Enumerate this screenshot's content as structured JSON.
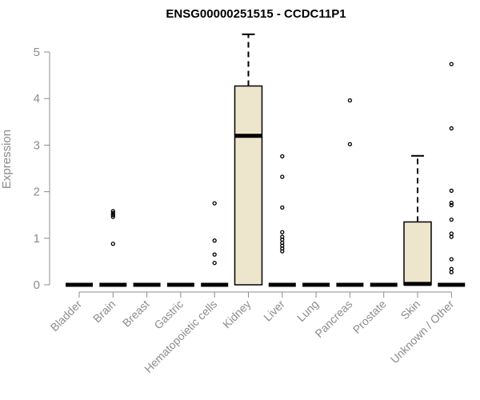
{
  "chart_data": {
    "type": "box",
    "title": "ENSG00000251515 - CCDC11P1",
    "xlabel": "",
    "ylabel": "Expression",
    "ylim": [
      0,
      5.6
    ],
    "yticks": [
      0,
      1,
      2,
      3,
      4,
      5
    ],
    "grid": false,
    "box_fill": "#ede6cc",
    "categories": [
      "Bladder",
      "Brain",
      "Breast",
      "Gastric",
      "Hematopoietic cells",
      "Kidney",
      "Liver",
      "Lung",
      "Pancreas",
      "Prostate",
      "Skin",
      "Unknown / Other"
    ],
    "boxes": [
      {
        "category": "Bladder",
        "q1": 0,
        "median": 0,
        "q3": 0,
        "whisker_low": 0,
        "whisker_high": 0,
        "outliers": []
      },
      {
        "category": "Brain",
        "q1": 0,
        "median": 0,
        "q3": 0,
        "whisker_low": 0,
        "whisker_high": 0,
        "outliers": [
          0.88,
          1.46,
          1.5,
          1.54,
          1.58
        ]
      },
      {
        "category": "Breast",
        "q1": 0,
        "median": 0,
        "q3": 0,
        "whisker_low": 0,
        "whisker_high": 0,
        "outliers": []
      },
      {
        "category": "Gastric",
        "q1": 0,
        "median": 0,
        "q3": 0,
        "whisker_low": 0,
        "whisker_high": 0,
        "outliers": []
      },
      {
        "category": "Hematopoietic cells",
        "q1": 0,
        "median": 0,
        "q3": 0,
        "whisker_low": 0,
        "whisker_high": 0,
        "outliers": [
          0.47,
          0.65,
          0.95,
          1.75
        ]
      },
      {
        "category": "Kidney",
        "q1": 0,
        "median": 3.2,
        "q3": 4.27,
        "whisker_low": 0,
        "whisker_high": 5.38,
        "outliers": []
      },
      {
        "category": "Liver",
        "q1": 0,
        "median": 0,
        "q3": 0,
        "whisker_low": 0,
        "whisker_high": 0,
        "outliers": [
          0.72,
          0.78,
          0.84,
          0.9,
          0.97,
          1.03,
          1.13,
          1.66,
          2.32,
          2.76
        ]
      },
      {
        "category": "Lung",
        "q1": 0,
        "median": 0,
        "q3": 0,
        "whisker_low": 0,
        "whisker_high": 0,
        "outliers": []
      },
      {
        "category": "Pancreas",
        "q1": 0,
        "median": 0,
        "q3": 0,
        "whisker_low": 0,
        "whisker_high": 0,
        "outliers": [
          3.02,
          3.96
        ]
      },
      {
        "category": "Prostate",
        "q1": 0,
        "median": 0,
        "q3": 0,
        "whisker_low": 0,
        "whisker_high": 0,
        "outliers": []
      },
      {
        "category": "Skin",
        "q1": 0,
        "median": 0.02,
        "q3": 1.35,
        "whisker_low": 0,
        "whisker_high": 2.77,
        "outliers": []
      },
      {
        "category": "Unknown / Other",
        "q1": 0,
        "median": 0,
        "q3": 0,
        "whisker_low": 0,
        "whisker_high": 0,
        "outliers": [
          0.27,
          0.34,
          0.55,
          1.03,
          1.1,
          1.4,
          1.71,
          1.76,
          2.02,
          3.36,
          4.74
        ]
      }
    ]
  }
}
